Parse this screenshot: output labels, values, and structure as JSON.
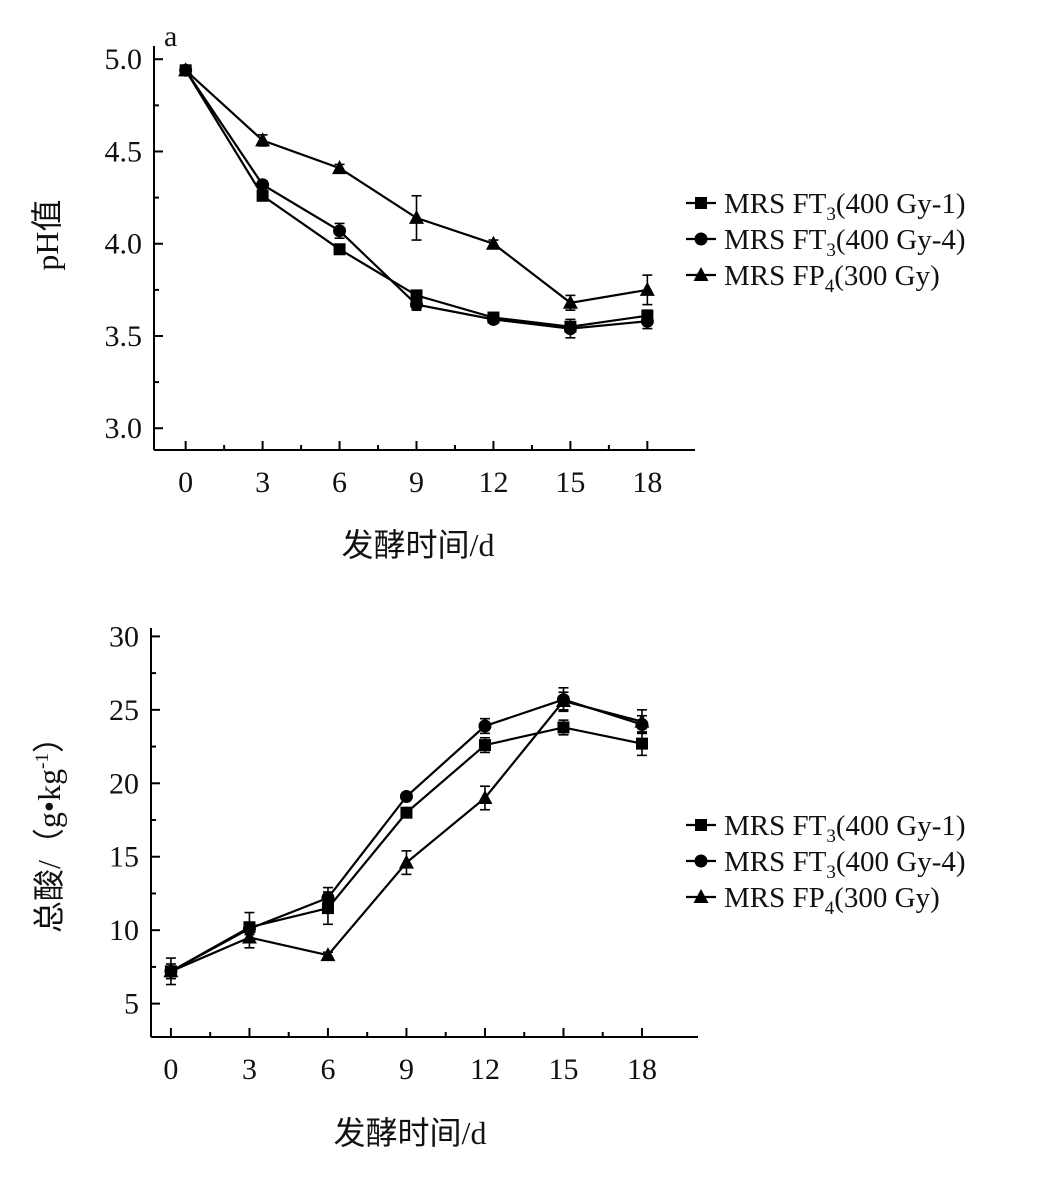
{
  "chart_data": [
    {
      "type": "line",
      "panel_label": "a",
      "title": "",
      "xlabel": "发酵时间/d",
      "ylabel": "pH值",
      "x": [
        0,
        3,
        6,
        9,
        12,
        15,
        18
      ],
      "xticks": [
        "0",
        "3",
        "6",
        "9",
        "12",
        "15",
        "18"
      ],
      "xlim": [
        -1,
        19
      ],
      "yticks": [
        "3.0",
        "3.5",
        "4.0",
        "4.5",
        "5.0"
      ],
      "ylim": [
        2.92,
        5.05
      ],
      "legend_position": "right",
      "series": [
        {
          "name": "MRS FT3(400 Gy-1)",
          "legend_main": "MRS FT",
          "legend_sub": "3",
          "legend_rest": "(400 Gy-1)",
          "marker": "square",
          "values": [
            4.94,
            4.26,
            3.97,
            3.72,
            3.6,
            3.55,
            3.61
          ],
          "errors": [
            0.01,
            0.02,
            0.01,
            0.01,
            0.01,
            0.02,
            0.03
          ]
        },
        {
          "name": "MRS FT3(400 Gy-4)",
          "legend_main": "MRS FT",
          "legend_sub": "3",
          "legend_rest": "(400 Gy-4)",
          "marker": "circle",
          "values": [
            4.94,
            4.32,
            4.07,
            3.67,
            3.59,
            3.54,
            3.58
          ],
          "errors": [
            0.01,
            0.02,
            0.04,
            0.03,
            0.01,
            0.05,
            0.04
          ]
        },
        {
          "name": "MRS FP4(300 Gy)",
          "legend_main": "MRS FP",
          "legend_sub": "4",
          "legend_rest": "(300 Gy)",
          "marker": "triangle",
          "values": [
            4.94,
            4.56,
            4.41,
            4.14,
            4.0,
            3.68,
            3.75
          ],
          "errors": [
            0.01,
            0.03,
            0.02,
            0.12,
            0.02,
            0.04,
            0.08
          ]
        }
      ]
    },
    {
      "type": "line",
      "panel_label": "",
      "title": "",
      "xlabel": "发酵时间/d",
      "ylabel_main": "总酸/（g•kg",
      "ylabel_sup": "-1",
      "ylabel_end": "）",
      "x": [
        0,
        3,
        6,
        9,
        12,
        15,
        18
      ],
      "xticks": [
        "0",
        "3",
        "6",
        "9",
        "12",
        "15",
        "18"
      ],
      "xlim": [
        -0.8,
        19.3
      ],
      "yticks": [
        "5",
        "10",
        "15",
        "20",
        "25",
        "30"
      ],
      "ylim": [
        3,
        30.3
      ],
      "legend_position": "right",
      "series": [
        {
          "name": "MRS FT3(400 Gy-1)",
          "legend_main": "MRS FT",
          "legend_sub": "3",
          "legend_rest": "(400 Gy-1)",
          "marker": "square",
          "values": [
            7.2,
            10.2,
            11.5,
            18.0,
            22.6,
            23.8,
            22.7
          ],
          "errors": [
            0.9,
            1.0,
            1.1,
            0.3,
            0.5,
            0.5,
            0.8
          ]
        },
        {
          "name": "MRS FT3(400 Gy-4)",
          "legend_main": "MRS FT",
          "legend_sub": "3",
          "legend_rest": "(400 Gy-4)",
          "marker": "circle",
          "values": [
            7.2,
            10.1,
            12.2,
            19.1,
            23.9,
            25.7,
            24.0
          ],
          "errors": [
            0.5,
            0.4,
            0.7,
            0.2,
            0.5,
            0.8,
            0.6
          ]
        },
        {
          "name": "MRS FP4(300 Gy)",
          "legend_main": "MRS FP",
          "legend_sub": "4",
          "legend_rest": "(300 Gy)",
          "marker": "triangle",
          "values": [
            7.2,
            9.5,
            8.3,
            14.6,
            19.0,
            25.6,
            24.2
          ],
          "errors": [
            0.3,
            0.7,
            0.2,
            0.8,
            0.8,
            0.6,
            0.8
          ]
        }
      ]
    }
  ]
}
